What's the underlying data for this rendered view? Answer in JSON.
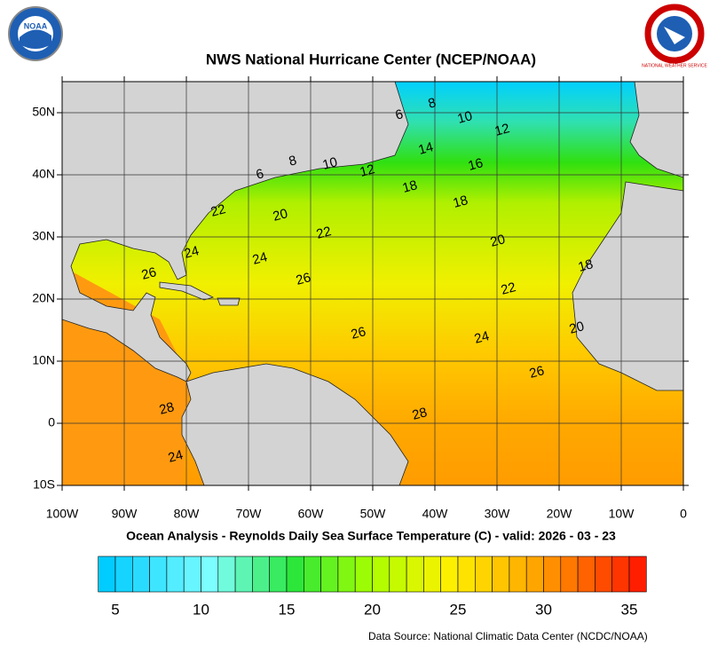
{
  "header": {
    "title": "NWS National Hurricane Center (NCEP/NOAA)",
    "noaa_logo": "NOAA",
    "nws_logo": "NATIONAL WEATHER SERVICE"
  },
  "map": {
    "lat_labels": [
      "50N",
      "40N",
      "30N",
      "20N",
      "10N",
      "0",
      "10S"
    ],
    "lon_labels": [
      "100W",
      "90W",
      "80W",
      "70W",
      "60W",
      "50W",
      "40W",
      "30W",
      "20W",
      "10W",
      "0"
    ],
    "contour_labels": [
      6,
      8,
      10,
      12,
      14,
      16,
      6,
      8,
      10,
      12,
      18,
      18,
      22,
      20,
      22,
      20,
      24,
      24,
      26,
      26,
      18,
      22,
      26,
      24,
      20,
      26,
      28,
      28,
      24
    ]
  },
  "subtitle": "Ocean Analysis - Reynolds Daily Sea Surface Temperature (C) - valid: 2026 - 03 - 23",
  "colorbar": {
    "labels": [
      5,
      10,
      15,
      20,
      25,
      30,
      35
    ]
  },
  "source": "Data Source: National Climatic Data Center (NCDC/NOAA)"
}
